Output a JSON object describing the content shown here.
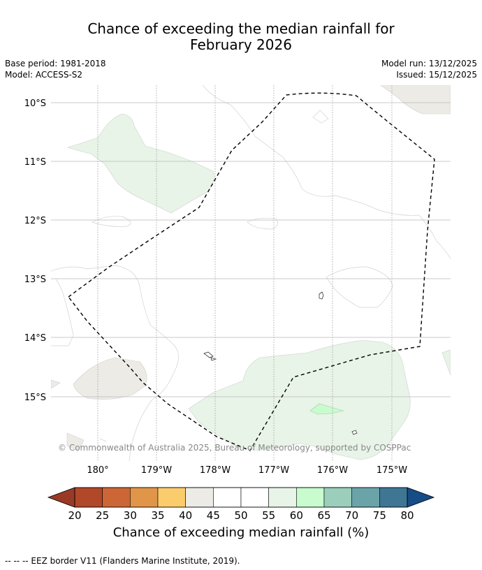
{
  "title": {
    "line1": "Chance of exceeding the median rainfall for",
    "line2": "February 2026"
  },
  "meta": {
    "base_period": "Base period: 1981-2018",
    "model": "Model: ACCESS-S2",
    "model_run": "Model run: 13/12/2025",
    "issued": "Issued: 15/12/2025"
  },
  "map": {
    "lat_labels": [
      "10°S",
      "11°S",
      "12°S",
      "13°S",
      "14°S",
      "15°S"
    ],
    "lon_labels": [
      "180°",
      "179°W",
      "178°W",
      "177°W",
      "176°W",
      "175°W"
    ],
    "copyright": "© Commonwealth of Australia 2025, Bureau of Meteorology, supported by COSPPac",
    "regions": [
      {
        "name": "wet-region-northwest",
        "category": "55-60"
      },
      {
        "name": "wet-region-south",
        "category": "55-60"
      },
      {
        "name": "wet-region-south-core",
        "category": "60-65"
      },
      {
        "name": "dry-region-northeast",
        "category": "40-45"
      },
      {
        "name": "dry-region-southwest",
        "category": "40-45"
      }
    ]
  },
  "colorbar": {
    "title": "Chance of exceeding median rainfall (%)",
    "ticks": [
      "20",
      "25",
      "30",
      "35",
      "40",
      "45",
      "50",
      "55",
      "60",
      "65",
      "70",
      "75",
      "80"
    ],
    "colors": [
      "#b1482a",
      "#cc6636",
      "#e19549",
      "#fbcc6c",
      "#edebe6",
      "#ffffff",
      "#ffffff",
      "#e8f4e8",
      "#c8fbcd",
      "#9bcfbb",
      "#6ba4a8",
      "#3f7694"
    ],
    "under_color": "#9a3a26",
    "over_color": "#174d86"
  },
  "legend_note": "--  --  -- EEZ border V11 (Flanders Marine Institute, 2019)."
}
